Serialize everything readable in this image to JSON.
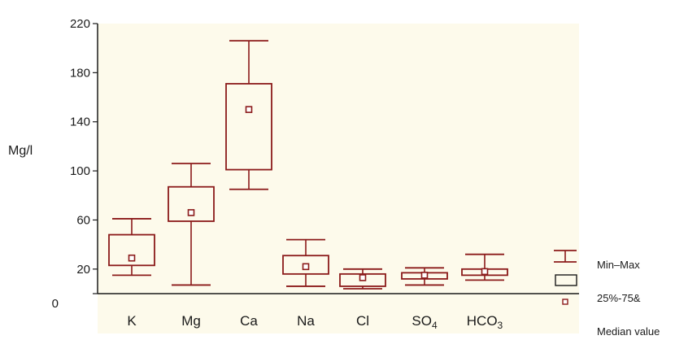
{
  "chart_data": {
    "type": "box",
    "ylabel": "Mg/l",
    "ylim": [
      0,
      220
    ],
    "yticks": [
      0,
      20,
      60,
      100,
      140,
      180,
      220
    ],
    "categories": [
      "K",
      "Mg",
      "Ca",
      "Na",
      "Cl",
      "SO",
      "HCO"
    ],
    "category_subscripts": [
      "",
      "",
      "",
      "",
      "",
      "4",
      "3"
    ],
    "boxes": [
      {
        "min": 15,
        "q1": 23,
        "median": 29,
        "q3": 48,
        "max": 61
      },
      {
        "min": 7,
        "q1": 59,
        "median": 66,
        "q3": 87,
        "max": 106
      },
      {
        "min": 85,
        "q1": 101,
        "median": 150,
        "q3": 171,
        "max": 206
      },
      {
        "min": 6,
        "q1": 16,
        "median": 22,
        "q3": 31,
        "max": 44
      },
      {
        "min": 4,
        "q1": 6,
        "median": 13,
        "q3": 16,
        "max": 20
      },
      {
        "min": 7,
        "q1": 12,
        "median": 15,
        "q3": 17,
        "max": 21
      },
      {
        "min": 11,
        "q1": 15,
        "median": 18,
        "q3": 20,
        "max": 32
      }
    ],
    "legend": {
      "placement": "right",
      "entries": [
        "Min–Max",
        "25%-75&",
        "Median value"
      ]
    },
    "colors": {
      "series": "#8b1a1a",
      "plot_background": "#fdfaeb",
      "axis": "#1a1a1a"
    },
    "grid": false
  }
}
